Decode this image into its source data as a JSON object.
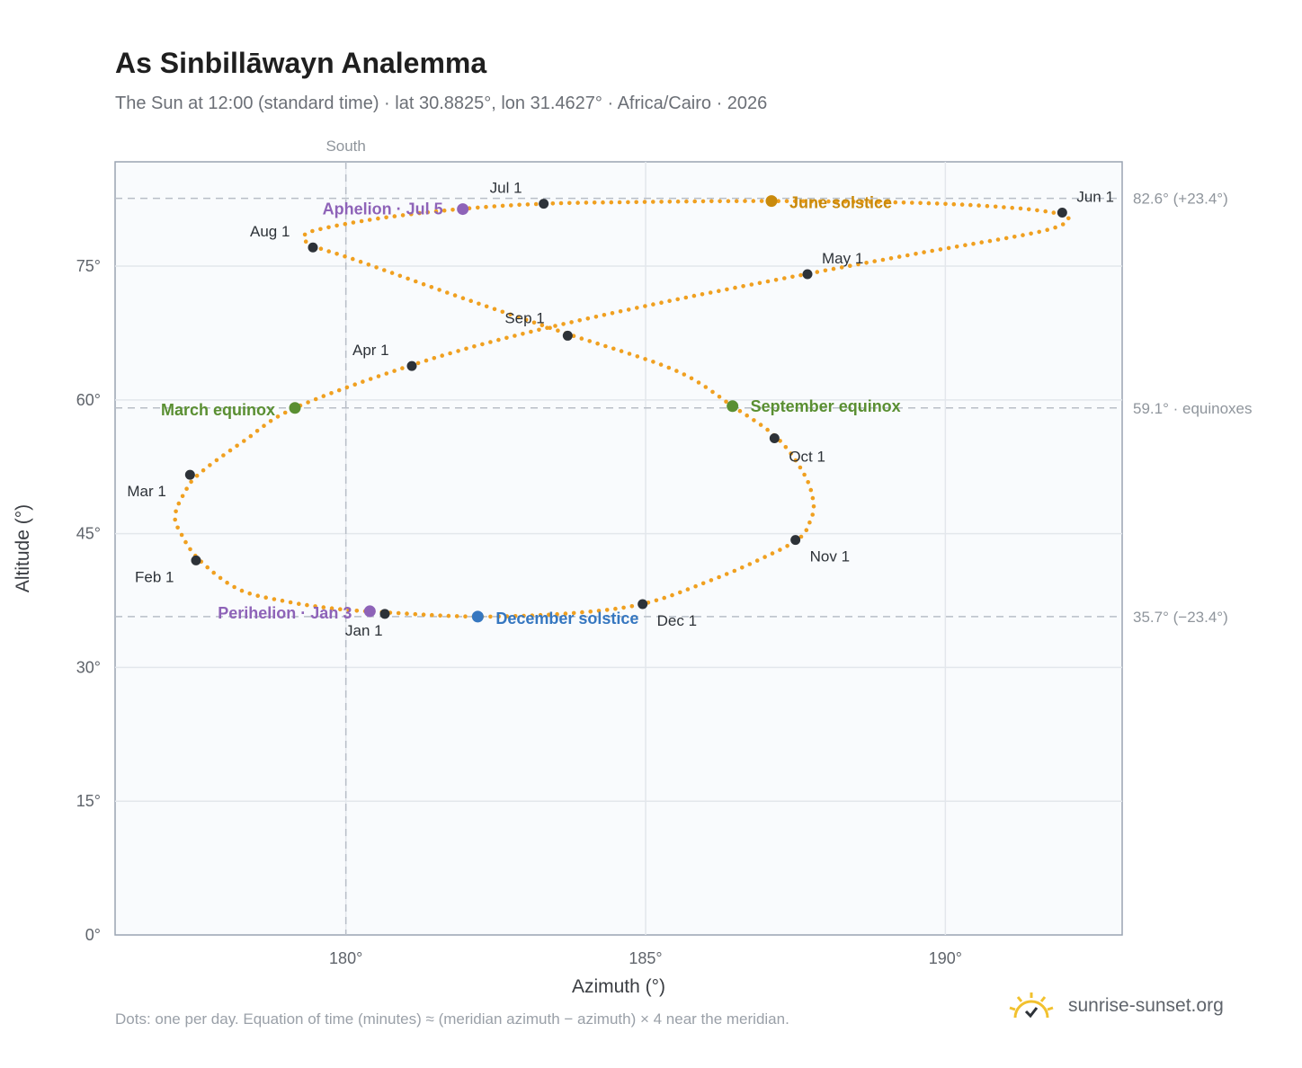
{
  "header": {
    "title": "As Sinbillāwayn Analemma",
    "subtitle": "The Sun at 12:00 (standard time) · lat 30.8825°, lon 31.4627° · Africa/Cairo · 2026"
  },
  "footer": {
    "note": "Dots: one per day. Equation of time (minutes) ≈ (meridian azimuth − azimuth) × 4 near the meridian.",
    "brand": "sunrise-sunset.org",
    "brand_icon": "sun-logo-icon"
  },
  "chart_data": {
    "type": "scatter",
    "xlabel": "Azimuth (°)",
    "ylabel": "Altitude (°)",
    "xlim": [
      176.15,
      192.95
    ],
    "ylim": [
      0,
      86.7
    ],
    "xticks": [
      {
        "value": 180,
        "label": "180°"
      },
      {
        "value": 185,
        "label": "185°"
      },
      {
        "value": 190,
        "label": "190°"
      }
    ],
    "yticks": [
      {
        "value": 0,
        "label": "0°"
      },
      {
        "value": 15,
        "label": "15°"
      },
      {
        "value": 30,
        "label": "30°"
      },
      {
        "value": 45,
        "label": "45°"
      },
      {
        "value": 60,
        "label": "60°"
      },
      {
        "value": 75,
        "label": "75°"
      }
    ],
    "reference_lines": {
      "vertical": [
        {
          "x": 180,
          "label": "South"
        }
      ],
      "horizontal": [
        {
          "y": 82.6,
          "label": "82.6° (+23.4°)"
        },
        {
          "y": 59.1,
          "label": "59.1° · equinoxes"
        },
        {
          "y": 35.7,
          "label": "35.7° (−23.4°)"
        }
      ]
    },
    "series_color": "#f0a020",
    "path_keypoints": [
      [
        180.6,
        36.2
      ],
      [
        179.8,
        36.6
      ],
      [
        179.0,
        37.4
      ],
      [
        178.2,
        38.8
      ],
      [
        177.55,
        42.1
      ],
      [
        177.25,
        45.0
      ],
      [
        177.15,
        47.0
      ],
      [
        177.3,
        49.5
      ],
      [
        177.55,
        51.7
      ],
      [
        178.3,
        55.4
      ],
      [
        179.15,
        59.1
      ],
      [
        181.1,
        63.9
      ],
      [
        183.0,
        67.5
      ],
      [
        185.4,
        71.1
      ],
      [
        187.75,
        74.2
      ],
      [
        189.6,
        76.5
      ],
      [
        191.6,
        78.9
      ],
      [
        192.05,
        80.3
      ],
      [
        191.8,
        81.0
      ],
      [
        191.0,
        81.6
      ],
      [
        189.5,
        82.1
      ],
      [
        187.1,
        82.3
      ],
      [
        185.0,
        82.2
      ],
      [
        183.3,
        82.0
      ],
      [
        181.9,
        81.4
      ],
      [
        180.6,
        80.4
      ],
      [
        179.6,
        79.2
      ],
      [
        179.3,
        78.4
      ],
      [
        179.45,
        77.3
      ],
      [
        180.2,
        75.6
      ],
      [
        182.0,
        71.3
      ],
      [
        183.7,
        67.4
      ],
      [
        185.5,
        63.3
      ],
      [
        186.45,
        59.3
      ],
      [
        187.2,
        55.7
      ],
      [
        187.65,
        51.6
      ],
      [
        187.8,
        48.5
      ],
      [
        187.75,
        46.5
      ],
      [
        187.55,
        44.4
      ],
      [
        186.9,
        42.1
      ],
      [
        186.1,
        39.8
      ],
      [
        185.0,
        37.2
      ],
      [
        183.8,
        36.1
      ],
      [
        182.2,
        35.7
      ],
      [
        180.6,
        36.2
      ]
    ],
    "day_count": 365,
    "month_markers": [
      {
        "label": "Jan 1",
        "x": 180.65,
        "y": 36.0
      },
      {
        "label": "Feb 1",
        "x": 177.5,
        "y": 42.0
      },
      {
        "label": "Mar 1",
        "x": 177.4,
        "y": 51.6
      },
      {
        "label": "Apr 1",
        "x": 181.1,
        "y": 63.8
      },
      {
        "label": "May 1",
        "x": 187.7,
        "y": 74.1
      },
      {
        "label": "Jun 1",
        "x": 191.95,
        "y": 81.0
      },
      {
        "label": "Jul 1",
        "x": 183.3,
        "y": 82.0
      },
      {
        "label": "Aug 1",
        "x": 179.45,
        "y": 77.1
      },
      {
        "label": "Sep 1",
        "x": 183.7,
        "y": 67.2
      },
      {
        "label": "Oct 1",
        "x": 187.15,
        "y": 55.7
      },
      {
        "label": "Nov 1",
        "x": 187.5,
        "y": 44.3
      },
      {
        "label": "Dec 1",
        "x": 184.95,
        "y": 37.1
      }
    ],
    "events": [
      {
        "label": "June solstice",
        "x": 187.1,
        "y": 82.3,
        "color": "#c98a0c"
      },
      {
        "label": "Aphelion · Jul 5",
        "x": 181.95,
        "y": 81.4,
        "color": "#8e63b8"
      },
      {
        "label": "March equinox",
        "x": 179.15,
        "y": 59.1,
        "color": "#5a8f32"
      },
      {
        "label": "September equinox",
        "x": 186.45,
        "y": 59.3,
        "color": "#5a8f32"
      },
      {
        "label": "Perihelion · Jan 3",
        "x": 180.4,
        "y": 36.3,
        "color": "#8e63b8"
      },
      {
        "label": "December solstice",
        "x": 182.2,
        "y": 35.7,
        "color": "#3677c0"
      }
    ]
  }
}
